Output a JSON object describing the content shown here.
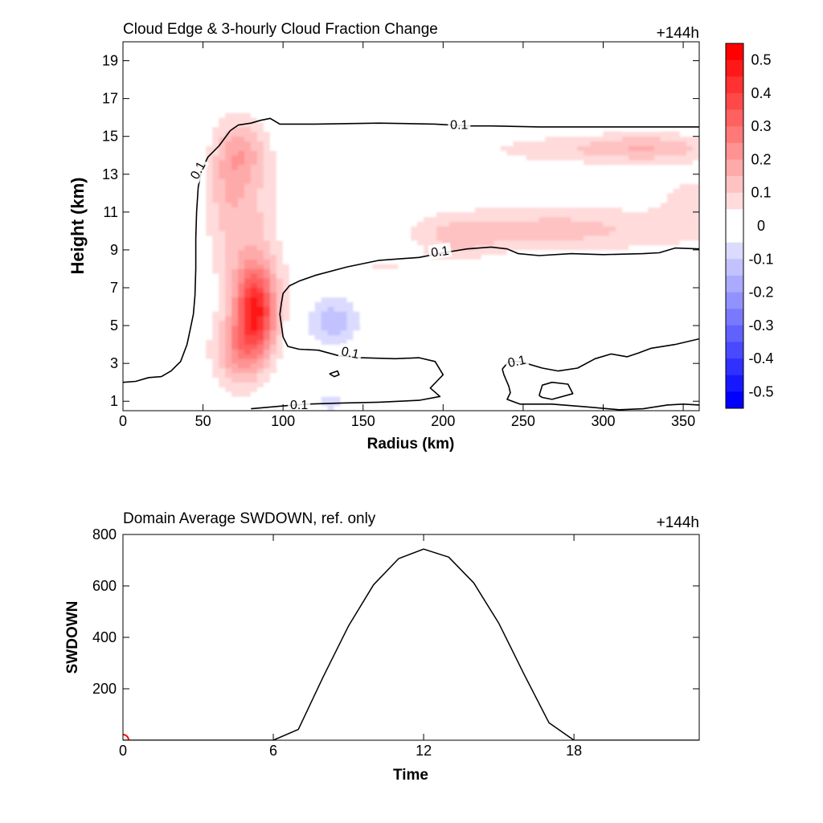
{
  "chart_data": [
    {
      "type": "heatmap",
      "title": "Cloud Edge & 3-hourly Cloud Fraction Change",
      "corner_label": "+144h",
      "xlabel": "Radius (km)",
      "ylabel": "Height (km)",
      "xlim": [
        0,
        360
      ],
      "ylim": [
        0.5,
        20
      ],
      "x_ticks": [
        0,
        50,
        100,
        150,
        200,
        250,
        300,
        350
      ],
      "y_ticks": [
        1,
        3,
        5,
        7,
        9,
        11,
        13,
        15,
        17,
        19
      ],
      "colorbar": {
        "min": -0.55,
        "max": 0.55,
        "step": 0.05,
        "tick_values": [
          0.5,
          0.4,
          0.3,
          0.2,
          0.1,
          0,
          -0.1,
          -0.2,
          -0.3,
          -0.4,
          -0.5
        ],
        "tick_labels": [
          "0.5",
          "0.4",
          "0.3",
          "0.2",
          "0.1",
          "0",
          "-0.1",
          "-0.2",
          "-0.3",
          "-0.4",
          "-0.5"
        ],
        "colors": {
          "negative": "#0000ff",
          "zero": "#ffffff",
          "positive": "#ff0000"
        }
      },
      "contour": {
        "level": "0.1",
        "labels": [
          {
            "text": "0.1",
            "x": 47,
            "y": 13.2,
            "angle": -62
          },
          {
            "text": "0.1",
            "x": 210,
            "y": 15.6,
            "angle": 0
          },
          {
            "text": "0.1",
            "x": 198,
            "y": 8.9,
            "angle": -8
          },
          {
            "text": "0.1",
            "x": 142,
            "y": 3.55,
            "angle": 12
          },
          {
            "text": "0.1",
            "x": 246,
            "y": 3.1,
            "angle": -12
          },
          {
            "text": "0.1",
            "x": 110,
            "y": 0.8,
            "angle": 0
          }
        ],
        "lines": [
          [
            [
              0,
              2
            ],
            [
              8,
              2.05
            ],
            [
              16,
              2.25
            ],
            [
              24,
              2.3
            ],
            [
              30,
              2.6
            ],
            [
              36,
              3.1
            ],
            [
              40,
              4
            ],
            [
              42,
              4.8
            ],
            [
              44,
              5.6
            ],
            [
              45,
              6.6
            ],
            [
              45.5,
              8
            ],
            [
              45.5,
              9.6
            ],
            [
              46,
              11
            ],
            [
              47,
              12.3
            ],
            [
              49,
              13.2
            ],
            [
              53,
              13.9
            ],
            [
              60,
              14.5
            ],
            [
              67,
              15.3
            ],
            [
              72,
              15.6
            ],
            [
              80,
              15.7
            ],
            [
              86,
              15.85
            ],
            [
              92,
              15.95
            ],
            [
              98,
              15.65
            ],
            [
              120,
              15.65
            ],
            [
              160,
              15.7
            ],
            [
              195,
              15.65
            ],
            [
              205,
              15.6
            ],
            [
              215,
              15.55
            ],
            [
              230,
              15.55
            ],
            [
              260,
              15.5
            ],
            [
              300,
              15.5
            ],
            [
              360,
              15.5
            ]
          ],
          [
            [
              360,
              9.05
            ],
            [
              345,
              9.1
            ],
            [
              335,
              8.85
            ],
            [
              325,
              8.8
            ],
            [
              300,
              8.75
            ],
            [
              280,
              8.8
            ],
            [
              260,
              8.7
            ],
            [
              247,
              8.8
            ],
            [
              240,
              9.05
            ],
            [
              230,
              9.15
            ],
            [
              215,
              9.05
            ],
            [
              200,
              8.85
            ],
            [
              185,
              8.6
            ],
            [
              160,
              8.45
            ],
            [
              140,
              8.1
            ],
            [
              120,
              7.65
            ],
            [
              110,
              7.35
            ],
            [
              104,
              7.1
            ],
            [
              100,
              6.7
            ],
            [
              99,
              6.2
            ],
            [
              98,
              5.6
            ],
            [
              99,
              5
            ],
            [
              100,
              4.4
            ],
            [
              103,
              3.9
            ],
            [
              110,
              3.75
            ],
            [
              122,
              3.7
            ],
            [
              135,
              3.4
            ],
            [
              148,
              3.3
            ],
            [
              170,
              3.25
            ],
            [
              185,
              3.3
            ],
            [
              195,
              3.1
            ],
            [
              200,
              2.4
            ],
            [
              196,
              2.05
            ],
            [
              192,
              1.7
            ],
            [
              198,
              1.25
            ],
            [
              185,
              1.05
            ],
            [
              160,
              0.95
            ],
            [
              135,
              0.9
            ],
            [
              115,
              0.85
            ],
            [
              100,
              0.75
            ],
            [
              80,
              0.6
            ]
          ],
          [
            [
              237,
              2.7
            ],
            [
              241,
              3.1
            ],
            [
              248,
              3.1
            ],
            [
              262,
              2.75
            ],
            [
              272,
              2.6
            ],
            [
              284,
              2.75
            ],
            [
              295,
              3.25
            ],
            [
              305,
              3.5
            ],
            [
              315,
              3.35
            ],
            [
              322,
              3.55
            ],
            [
              330,
              3.8
            ],
            [
              345,
              4
            ],
            [
              360,
              4.3
            ]
          ],
          [
            [
              237,
              2.7
            ],
            [
              238,
              2.4
            ],
            [
              241,
              1.8
            ],
            [
              242,
              1.45
            ],
            [
              240,
              1.1
            ],
            [
              248,
              0.85
            ],
            [
              268,
              0.85
            ],
            [
              290,
              0.7
            ],
            [
              310,
              0.55
            ],
            [
              325,
              0.6
            ],
            [
              340,
              0.8
            ],
            [
              350,
              0.85
            ],
            [
              360,
              0.8
            ]
          ],
          [
            [
              260,
              1.3
            ],
            [
              262,
              1.85
            ],
            [
              268,
              2
            ],
            [
              278,
              1.9
            ],
            [
              281,
              1.4
            ],
            [
              268,
              1.1
            ],
            [
              262,
              1.2
            ],
            [
              260,
              1.3
            ]
          ],
          [
            [
              129,
              2.45
            ],
            [
              134,
              2.6
            ],
            [
              135,
              2.4
            ],
            [
              132,
              2.3
            ],
            [
              129,
              2.45
            ]
          ]
        ]
      },
      "anomalies": [
        {
          "x": 83,
          "y": 5.8,
          "sx": 9,
          "sy": 1.6,
          "amp": 0.42
        },
        {
          "x": 72,
          "y": 3.5,
          "sx": 11,
          "sy": 1.3,
          "amp": 0.17
        },
        {
          "x": 76,
          "y": 10.5,
          "sx": 15,
          "sy": 3.5,
          "amp": 0.12
        },
        {
          "x": 75,
          "y": 14.2,
          "sx": 10,
          "sy": 1.1,
          "amp": 0.11
        },
        {
          "x": 64,
          "y": 12.6,
          "sx": 8,
          "sy": 1.8,
          "amp": 0.07
        },
        {
          "x": 270,
          "y": 10.1,
          "sx": 60,
          "sy": 0.9,
          "amp": 0.12
        },
        {
          "x": 210,
          "y": 9.6,
          "sx": 15,
          "sy": 0.7,
          "amp": 0.08
        },
        {
          "x": 330,
          "y": 14.4,
          "sx": 28,
          "sy": 0.55,
          "amp": 0.13
        },
        {
          "x": 270,
          "y": 14.3,
          "sx": 40,
          "sy": 0.6,
          "amp": 0.07
        },
        {
          "x": 355,
          "y": 11.5,
          "sx": 14,
          "sy": 1.2,
          "amp": 0.07
        },
        {
          "x": 200,
          "y": 4.2,
          "sx": 55,
          "sy": 0.8,
          "amp": 0.04
        },
        {
          "x": 160,
          "y": 8.0,
          "sx": 40,
          "sy": 0.6,
          "amp": 0.05
        },
        {
          "x": 132,
          "y": 5.1,
          "sx": 12,
          "sy": 1.0,
          "amp": -0.14
        },
        {
          "x": 130,
          "y": 0.9,
          "sx": 12,
          "sy": 0.5,
          "amp": -0.06
        },
        {
          "x": 42,
          "y": 2.1,
          "sx": 5,
          "sy": 0.5,
          "amp": -0.05
        }
      ]
    },
    {
      "type": "line",
      "title": "Domain Average SWDOWN, ref. only",
      "corner_label": "+144h",
      "xlabel": "Time",
      "ylabel": "SWDOWN",
      "xlim": [
        0,
        23
      ],
      "ylim": [
        0,
        800
      ],
      "x_ticks": [
        0,
        6,
        12,
        18
      ],
      "y_ticks": [
        200,
        400,
        600,
        800
      ],
      "series": [
        {
          "x": [
            0,
            1,
            2,
            3,
            4,
            5,
            6,
            7,
            8,
            9,
            10,
            11,
            12,
            13,
            14,
            15,
            16,
            17,
            18,
            19,
            20,
            21,
            22,
            23
          ],
          "values": [
            0,
            0,
            0,
            0,
            0,
            0,
            0,
            42,
            248,
            444,
            604,
            706,
            743,
            712,
            612,
            455,
            258,
            68,
            0,
            0,
            0,
            0,
            0,
            0
          ],
          "color": "#000000"
        }
      ],
      "marker": {
        "x": 0,
        "y": 0,
        "color": "#ff0000"
      }
    }
  ]
}
